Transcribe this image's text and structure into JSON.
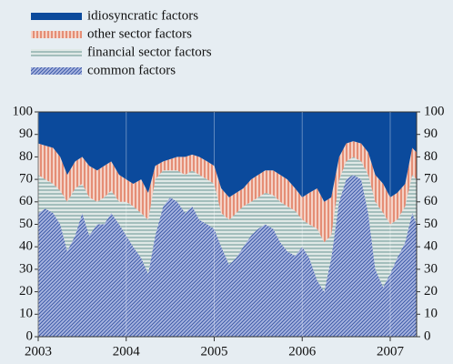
{
  "chart_data": {
    "type": "stacked-area",
    "x": [
      2003,
      2003.08,
      2003.17,
      2003.25,
      2003.33,
      2003.42,
      2003.5,
      2003.58,
      2003.67,
      2003.75,
      2003.83,
      2003.92,
      2004,
      2004.08,
      2004.17,
      2004.25,
      2004.33,
      2004.42,
      2004.5,
      2004.58,
      2004.67,
      2004.75,
      2004.83,
      2004.92,
      2005,
      2005.08,
      2005.17,
      2005.25,
      2005.33,
      2005.42,
      2005.5,
      2005.58,
      2005.67,
      2005.75,
      2005.83,
      2005.92,
      2006,
      2006.08,
      2006.17,
      2006.25,
      2006.33,
      2006.42,
      2006.5,
      2006.58,
      2006.67,
      2006.75,
      2006.83,
      2006.92,
      2007,
      2007.08,
      2007.17,
      2007.25,
      2007.3
    ],
    "series": [
      {
        "name": "common factors",
        "color": "#3c5aa8",
        "values": [
          55,
          57,
          55,
          50,
          38,
          45,
          55,
          45,
          50,
          50,
          55,
          50,
          45,
          40,
          35,
          28,
          45,
          58,
          62,
          60,
          55,
          58,
          52,
          50,
          48,
          40,
          32,
          35,
          40,
          45,
          48,
          50,
          48,
          42,
          38,
          36,
          40,
          35,
          25,
          20,
          35,
          60,
          70,
          72,
          70,
          55,
          30,
          22,
          28,
          35,
          42,
          55,
          50
        ]
      },
      {
        "name": "financial sector factors",
        "color": "#8fb0ae",
        "values": [
          17,
          13,
          13,
          15,
          22,
          21,
          13,
          17,
          10,
          12,
          10,
          10,
          15,
          18,
          20,
          24,
          25,
          16,
          12,
          14,
          17,
          16,
          20,
          20,
          20,
          15,
          20,
          20,
          18,
          15,
          14,
          14,
          15,
          18,
          20,
          20,
          12,
          15,
          23,
          22,
          10,
          10,
          8,
          8,
          8,
          17,
          30,
          33,
          22,
          17,
          16,
          17,
          20
        ]
      },
      {
        "name": "other sector factors",
        "color": "#e0785c",
        "values": [
          14,
          15,
          16,
          15,
          12,
          12,
          12,
          14,
          14,
          14,
          13,
          12,
          10,
          10,
          15,
          12,
          6,
          4,
          5,
          6,
          8,
          7,
          8,
          8,
          8,
          11,
          10,
          9,
          8,
          10,
          10,
          10,
          11,
          12,
          12,
          10,
          10,
          14,
          18,
          18,
          17,
          10,
          8,
          7,
          8,
          10,
          12,
          13,
          12,
          12,
          10,
          12,
          12
        ]
      },
      {
        "name": "idiosyncratic factors",
        "color": "#0b4a9c",
        "values": [
          14,
          15,
          16,
          20,
          28,
          22,
          20,
          24,
          26,
          24,
          22,
          28,
          30,
          32,
          30,
          36,
          24,
          22,
          21,
          20,
          20,
          19,
          20,
          22,
          24,
          34,
          38,
          36,
          34,
          30,
          28,
          26,
          26,
          28,
          30,
          34,
          38,
          36,
          34,
          40,
          38,
          20,
          14,
          13,
          14,
          18,
          28,
          32,
          38,
          36,
          32,
          16,
          18
        ]
      }
    ],
    "xlim": [
      2003,
      2007.3
    ],
    "xticks": [
      2003,
      2004,
      2005,
      2006,
      2007
    ],
    "ylim": [
      0,
      100
    ],
    "yticks": [
      0,
      10,
      20,
      30,
      40,
      50,
      60,
      70,
      80,
      90,
      100
    ]
  }
}
